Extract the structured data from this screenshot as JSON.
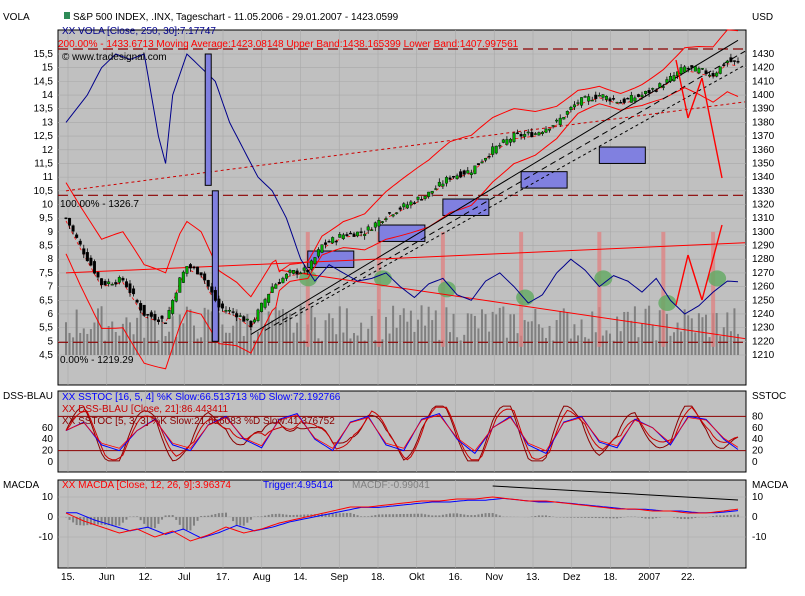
{
  "colors": {
    "plot_bg": "#c0c0c0",
    "price": "#000000",
    "bands": "#ff0000",
    "vola": "#00008b",
    "stoch_blue": "#0000ff",
    "stoch_dark": "#8b0000",
    "marker_box": "#8080e0",
    "marker_bar": "#e08080",
    "marker_bump": "#66aa66",
    "volume": "#808080"
  },
  "chart_data": [
    {
      "type": "line",
      "panel": "main",
      "left_axis_label": "VOLA",
      "right_axis_label": "USD",
      "header": "S&P 500 INDEX, .INX, Tageschart - 11.05.2006 - 29.01.2007 - 1423.0599",
      "legend": [
        "XX VOLA [Close, 250, 30]:7.17747",
        "200.00% - 1433.6713 Moving Average:1423.08148 Upper Band:1438.165399 Lower Band:1407.997561"
      ],
      "copyright": "© www.tradesignal.com",
      "left_ticks": [
        "15,5",
        "15",
        "14,5",
        "14",
        "13,5",
        "13",
        "12,5",
        "12",
        "11,5",
        "11",
        "10,5",
        "10",
        "9,5",
        "9",
        "8,5",
        "8",
        "7,5",
        "7",
        "6,5",
        "6",
        "5,5",
        "5",
        "4,5"
      ],
      "left_range": [
        4.5,
        15.5
      ],
      "right_ticks": [
        "1430",
        "1420",
        "1410",
        "1400",
        "1390",
        "1380",
        "1370",
        "1360",
        "1350",
        "1340",
        "1330",
        "1320",
        "1310",
        "1300",
        "1290",
        "1280",
        "1270",
        "1260",
        "1250",
        "1240",
        "1230",
        "1220",
        "1210"
      ],
      "price_range": [
        1210,
        1430
      ],
      "fib_labels": [
        "100.00% - 1326.7",
        "0.00% - 1219.29"
      ],
      "fib_levels": [
        1326.7,
        1219.29,
        1433.67
      ],
      "x_labels": [
        "15.",
        "Jun",
        "12.",
        "Jul",
        "17.",
        "Aug",
        "14.",
        "Sep",
        "18.",
        "Okt",
        "16.",
        "Nov",
        "13.",
        "Dez",
        "18.",
        "2007",
        "22."
      ],
      "price_anchors": [
        [
          0,
          1310
        ],
        [
          4,
          1290
        ],
        [
          10,
          1262
        ],
        [
          16,
          1265
        ],
        [
          22,
          1240
        ],
        [
          28,
          1235
        ],
        [
          32,
          1265
        ],
        [
          34,
          1275
        ],
        [
          38,
          1270
        ],
        [
          43,
          1245
        ],
        [
          48,
          1240
        ],
        [
          52,
          1232
        ],
        [
          58,
          1260
        ],
        [
          63,
          1270
        ],
        [
          68,
          1272
        ],
        [
          72,
          1290
        ],
        [
          78,
          1298
        ],
        [
          84,
          1300
        ],
        [
          90,
          1312
        ],
        [
          96,
          1320
        ],
        [
          102,
          1328
        ],
        [
          108,
          1340
        ],
        [
          114,
          1345
        ],
        [
          120,
          1360
        ],
        [
          126,
          1370
        ],
        [
          132,
          1372
        ],
        [
          138,
          1380
        ],
        [
          144,
          1395
        ],
        [
          150,
          1400
        ],
        [
          156,
          1395
        ],
        [
          162,
          1400
        ],
        [
          168,
          1408
        ],
        [
          174,
          1420
        ],
        [
          178,
          1418
        ],
        [
          182,
          1415
        ],
        [
          186,
          1425
        ],
        [
          189,
          1423
        ]
      ],
      "vola_anchors": [
        [
          0,
          13
        ],
        [
          3,
          13.5
        ],
        [
          6,
          14
        ],
        [
          10,
          15
        ],
        [
          14,
          15.5
        ],
        [
          18,
          15.3
        ],
        [
          22,
          15.5
        ],
        [
          26,
          12.5
        ],
        [
          28,
          11.5
        ],
        [
          30,
          14
        ],
        [
          34,
          15.5
        ],
        [
          38,
          15
        ],
        [
          42,
          14.5
        ],
        [
          46,
          13
        ],
        [
          50,
          12
        ],
        [
          54,
          11
        ],
        [
          58,
          10.5
        ],
        [
          62,
          9.5
        ],
        [
          66,
          8
        ],
        [
          70,
          7.2
        ],
        [
          74,
          7.8
        ],
        [
          78,
          7.5
        ],
        [
          82,
          7.2
        ],
        [
          86,
          7.3
        ],
        [
          90,
          7.5
        ],
        [
          94,
          7
        ],
        [
          98,
          6.6
        ],
        [
          102,
          7.1
        ],
        [
          106,
          7.3
        ],
        [
          110,
          6.7
        ],
        [
          114,
          6.5
        ],
        [
          118,
          7.2
        ],
        [
          122,
          7.5
        ],
        [
          126,
          7
        ],
        [
          130,
          6.4
        ],
        [
          134,
          6.7
        ],
        [
          138,
          7.5
        ],
        [
          142,
          8
        ],
        [
          146,
          7.6
        ],
        [
          150,
          7
        ],
        [
          154,
          7.4
        ],
        [
          158,
          7.2
        ],
        [
          162,
          6.8
        ],
        [
          166,
          7.3
        ],
        [
          170,
          6.5
        ],
        [
          174,
          6
        ],
        [
          178,
          6.3
        ],
        [
          182,
          6.8
        ],
        [
          186,
          7.2
        ],
        [
          189,
          7.18
        ]
      ]
    },
    {
      "type": "line",
      "panel": "stochastic",
      "left_axis_label": "DSS-BLAU",
      "right_axis_label": "SSTOC",
      "legend": [
        "XX SSTOC [16, 5, 4] %K Slow:66.513713 %D Slow:72.192766",
        "XX DSS-BLAU [Close, 21]:86.443411",
        "XX SSTOC [5, 3, 3] %K Slow:21.656083 %D Slow:41.376752"
      ],
      "ticks": [
        "60",
        "40",
        "20",
        "0"
      ],
      "right_ticks": [
        "80",
        "60",
        "40",
        "20",
        "0"
      ],
      "range": [
        0,
        100
      ],
      "levels": [
        80,
        20
      ],
      "pk": [
        [
          0,
          55
        ],
        [
          5,
          70
        ],
        [
          10,
          30
        ],
        [
          15,
          20
        ],
        [
          20,
          55
        ],
        [
          25,
          75
        ],
        [
          30,
          30
        ],
        [
          35,
          20
        ],
        [
          40,
          65
        ],
        [
          45,
          80
        ],
        [
          50,
          40
        ],
        [
          55,
          25
        ],
        [
          60,
          75
        ],
        [
          65,
          85
        ],
        [
          70,
          40
        ],
        [
          75,
          20
        ],
        [
          80,
          70
        ],
        [
          85,
          80
        ],
        [
          90,
          30
        ],
        [
          95,
          20
        ],
        [
          100,
          75
        ],
        [
          105,
          85
        ],
        [
          110,
          40
        ],
        [
          115,
          15
        ],
        [
          120,
          60
        ],
        [
          125,
          80
        ],
        [
          130,
          30
        ],
        [
          135,
          15
        ],
        [
          140,
          70
        ],
        [
          145,
          80
        ],
        [
          150,
          35
        ],
        [
          155,
          25
        ],
        [
          160,
          75
        ],
        [
          165,
          60
        ],
        [
          170,
          30
        ],
        [
          175,
          80
        ],
        [
          180,
          75
        ],
        [
          185,
          40
        ],
        [
          189,
          22
        ]
      ]
    },
    {
      "type": "line",
      "panel": "macd",
      "left_axis_label": "MACDA",
      "right_axis_label": "MACDA",
      "legend_macd": "XX MACDA [Close, 12, 26, 9]:3.96374",
      "legend_trigger": "Trigger:4.95414",
      "legend_diff": "MACDF:-0.99041",
      "ticks": [
        "10",
        "0",
        "-10"
      ],
      "range": [
        -15,
        15
      ],
      "macd": [
        [
          0,
          2
        ],
        [
          5,
          -2
        ],
        [
          10,
          -5
        ],
        [
          15,
          -8
        ],
        [
          20,
          -6
        ],
        [
          25,
          -10
        ],
        [
          30,
          -7
        ],
        [
          35,
          -12
        ],
        [
          40,
          -9
        ],
        [
          45,
          -5
        ],
        [
          50,
          -8
        ],
        [
          55,
          -6
        ],
        [
          60,
          -3
        ],
        [
          65,
          -1
        ],
        [
          70,
          1
        ],
        [
          75,
          3
        ],
        [
          80,
          5
        ],
        [
          85,
          5
        ],
        [
          90,
          6
        ],
        [
          95,
          7
        ],
        [
          100,
          8
        ],
        [
          105,
          8
        ],
        [
          110,
          9
        ],
        [
          115,
          9
        ],
        [
          120,
          10
        ],
        [
          125,
          9
        ],
        [
          130,
          8
        ],
        [
          135,
          8
        ],
        [
          140,
          7
        ],
        [
          145,
          6
        ],
        [
          150,
          5
        ],
        [
          155,
          4
        ],
        [
          160,
          4
        ],
        [
          165,
          3
        ],
        [
          170,
          3
        ],
        [
          175,
          2
        ],
        [
          180,
          2
        ],
        [
          185,
          3
        ],
        [
          189,
          3.96
        ]
      ]
    }
  ]
}
